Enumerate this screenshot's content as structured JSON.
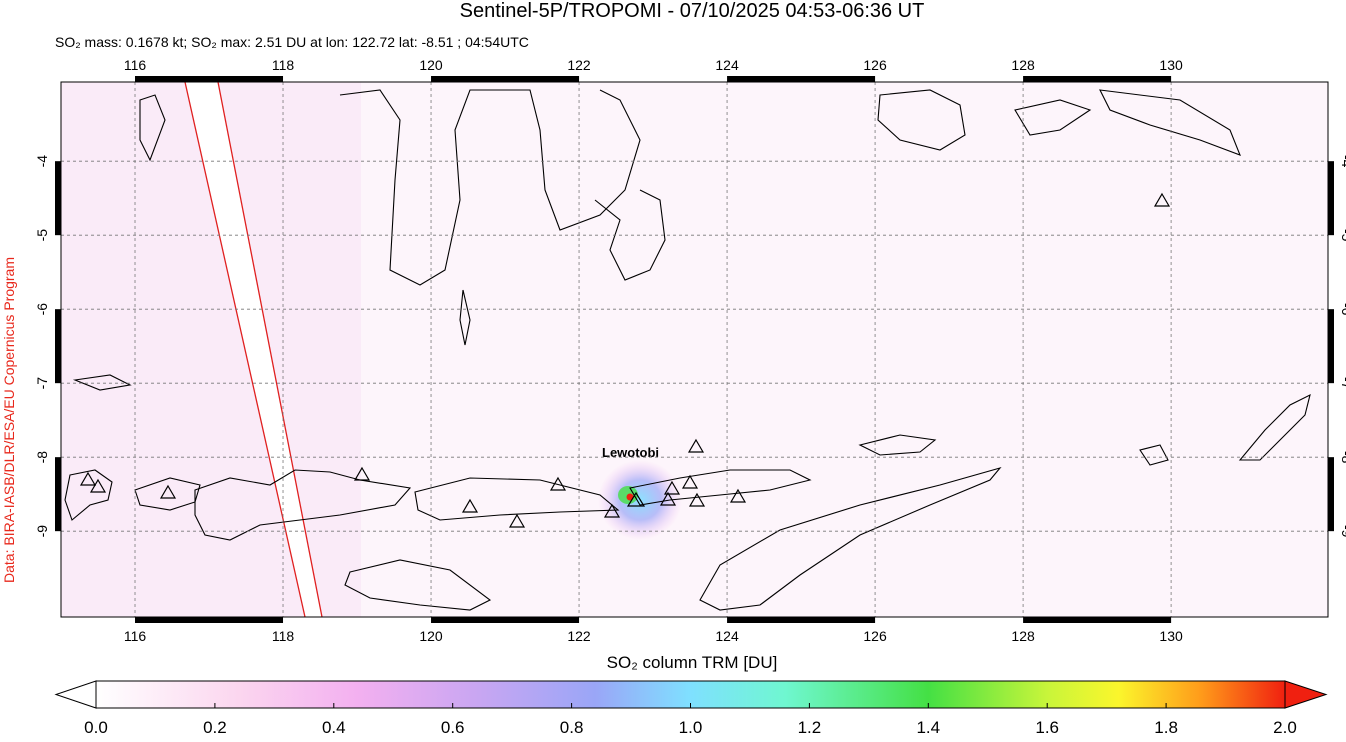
{
  "map": {
    "title": "Sentinel-5P/TROPOMI - 07/10/2025 04:53-06:36 UT",
    "subtitle": "SO₂ mass: 0.1678 kt; SO₂ max: 2.51 DU at lon: 122.72 lat: -8.51 ; 04:54UTC",
    "credit": "Data: BIRA-IASB/DLR/ESA/EU Copernicus Program",
    "volcano": "Lewotobi",
    "lon_range": [
      115,
      132.12
    ],
    "lat_range": [
      -10.16,
      -2.93
    ],
    "lon_ticks": [
      116,
      118,
      120,
      122,
      124,
      126,
      128,
      130
    ],
    "lat_ticks": [
      -4,
      -5,
      -6,
      -7,
      -8,
      -9
    ],
    "colorbar": {
      "label": "SO₂ column TRM [DU]",
      "range": [
        0,
        2
      ],
      "ticks": [
        {
          "value": 0,
          "label": "0.0"
        },
        {
          "value": 0.2,
          "label": "0.2"
        },
        {
          "value": 0.4,
          "label": "0.4"
        },
        {
          "value": 0.6,
          "label": "0.6"
        },
        {
          "value": 0.8,
          "label": "0.8"
        },
        {
          "value": 1,
          "label": "1.0"
        },
        {
          "value": 1.2,
          "label": "1.2"
        },
        {
          "value": 1.4,
          "label": "1.4"
        },
        {
          "value": 1.6,
          "label": "1.6"
        },
        {
          "value": 1.8,
          "label": "1.8"
        },
        {
          "value": 2,
          "label": "2.0"
        }
      ]
    }
  }
}
